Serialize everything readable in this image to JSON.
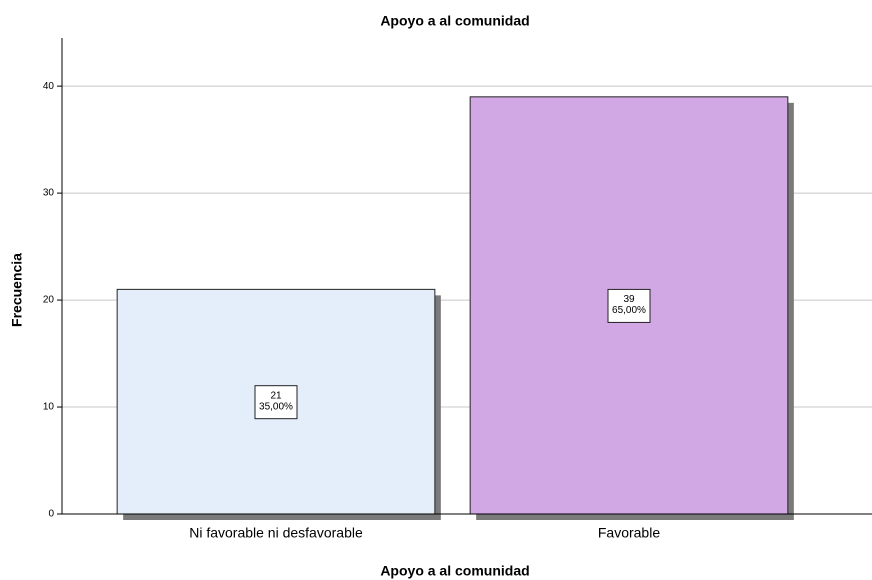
{
  "chart_data": {
    "type": "bar",
    "title": "Apoyo a al comunidad",
    "x_label": "Apoyo a al comunidad",
    "y_label": "Frecuencia",
    "categories": [
      "Ni favorable ni desfavorable",
      "Favorable"
    ],
    "values": [
      21,
      39
    ],
    "percentages": [
      35,
      65
    ],
    "percentage_labels": [
      "35,00%",
      "65,00%"
    ],
    "colors": [
      "#e3eefa",
      "#d1a8e4"
    ],
    "ylim": [
      0,
      44.5
    ],
    "yticks": [
      0,
      10,
      20,
      30,
      40
    ],
    "grid": true
  }
}
